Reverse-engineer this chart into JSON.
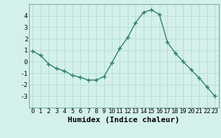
{
  "x": [
    0,
    1,
    2,
    3,
    4,
    5,
    6,
    7,
    8,
    9,
    10,
    11,
    12,
    13,
    14,
    15,
    16,
    17,
    18,
    19,
    20,
    21,
    22,
    23
  ],
  "y": [
    0.9,
    0.55,
    -0.2,
    -0.6,
    -0.8,
    -1.2,
    -1.35,
    -1.6,
    -1.6,
    -1.3,
    -0.1,
    1.15,
    2.1,
    3.4,
    4.3,
    4.5,
    4.1,
    1.7,
    0.75,
    0.0,
    -0.7,
    -1.4,
    -2.2,
    -3.0
  ],
  "xlabel": "Humidex (Indice chaleur)",
  "xlim": [
    -0.5,
    23.5
  ],
  "ylim": [
    -4,
    5
  ],
  "yticks": [
    -3,
    -2,
    -1,
    0,
    1,
    2,
    3,
    4
  ],
  "xticks": [
    0,
    1,
    2,
    3,
    4,
    5,
    6,
    7,
    8,
    9,
    10,
    11,
    12,
    13,
    14,
    15,
    16,
    17,
    18,
    19,
    20,
    21,
    22,
    23
  ],
  "line_color": "#2e7d6d",
  "marker": "+",
  "marker_size": 4,
  "bg_color": "#d4f0eb",
  "grid_color": "#b8ddd8",
  "tick_label_fontsize": 6.5,
  "xlabel_fontsize": 8
}
